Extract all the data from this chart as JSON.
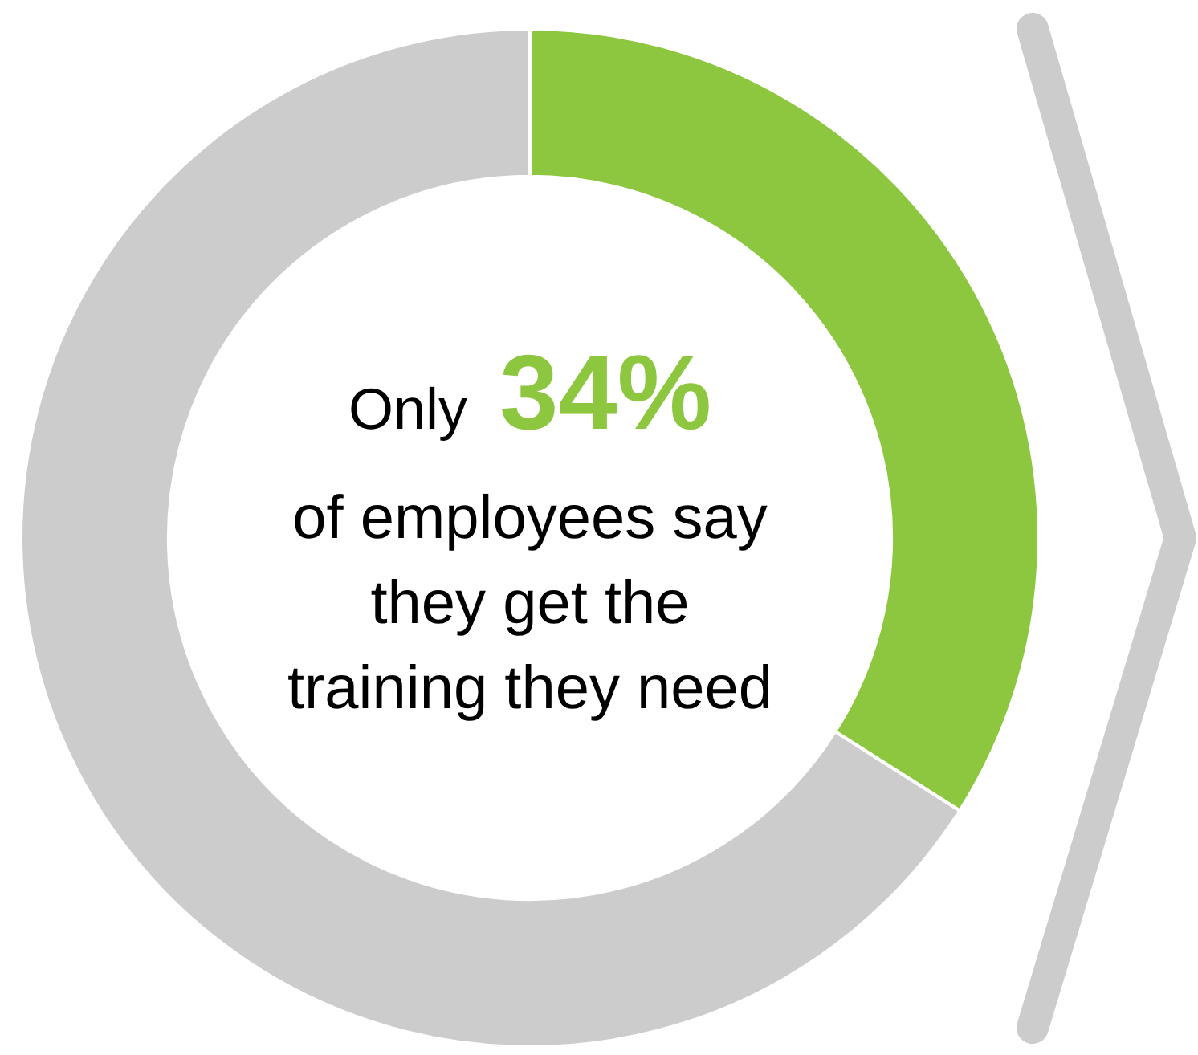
{
  "chart_data": {
    "type": "donut",
    "categories": [
      null,
      null
    ],
    "values": [
      34,
      66
    ],
    "colors": [
      "#8dc63f",
      "#cccccc"
    ],
    "value_labels": [
      "34%",
      null
    ],
    "annotations": [
      "Only",
      "of employees say",
      "they get the",
      "training they need"
    ],
    "legend": false
  }
}
